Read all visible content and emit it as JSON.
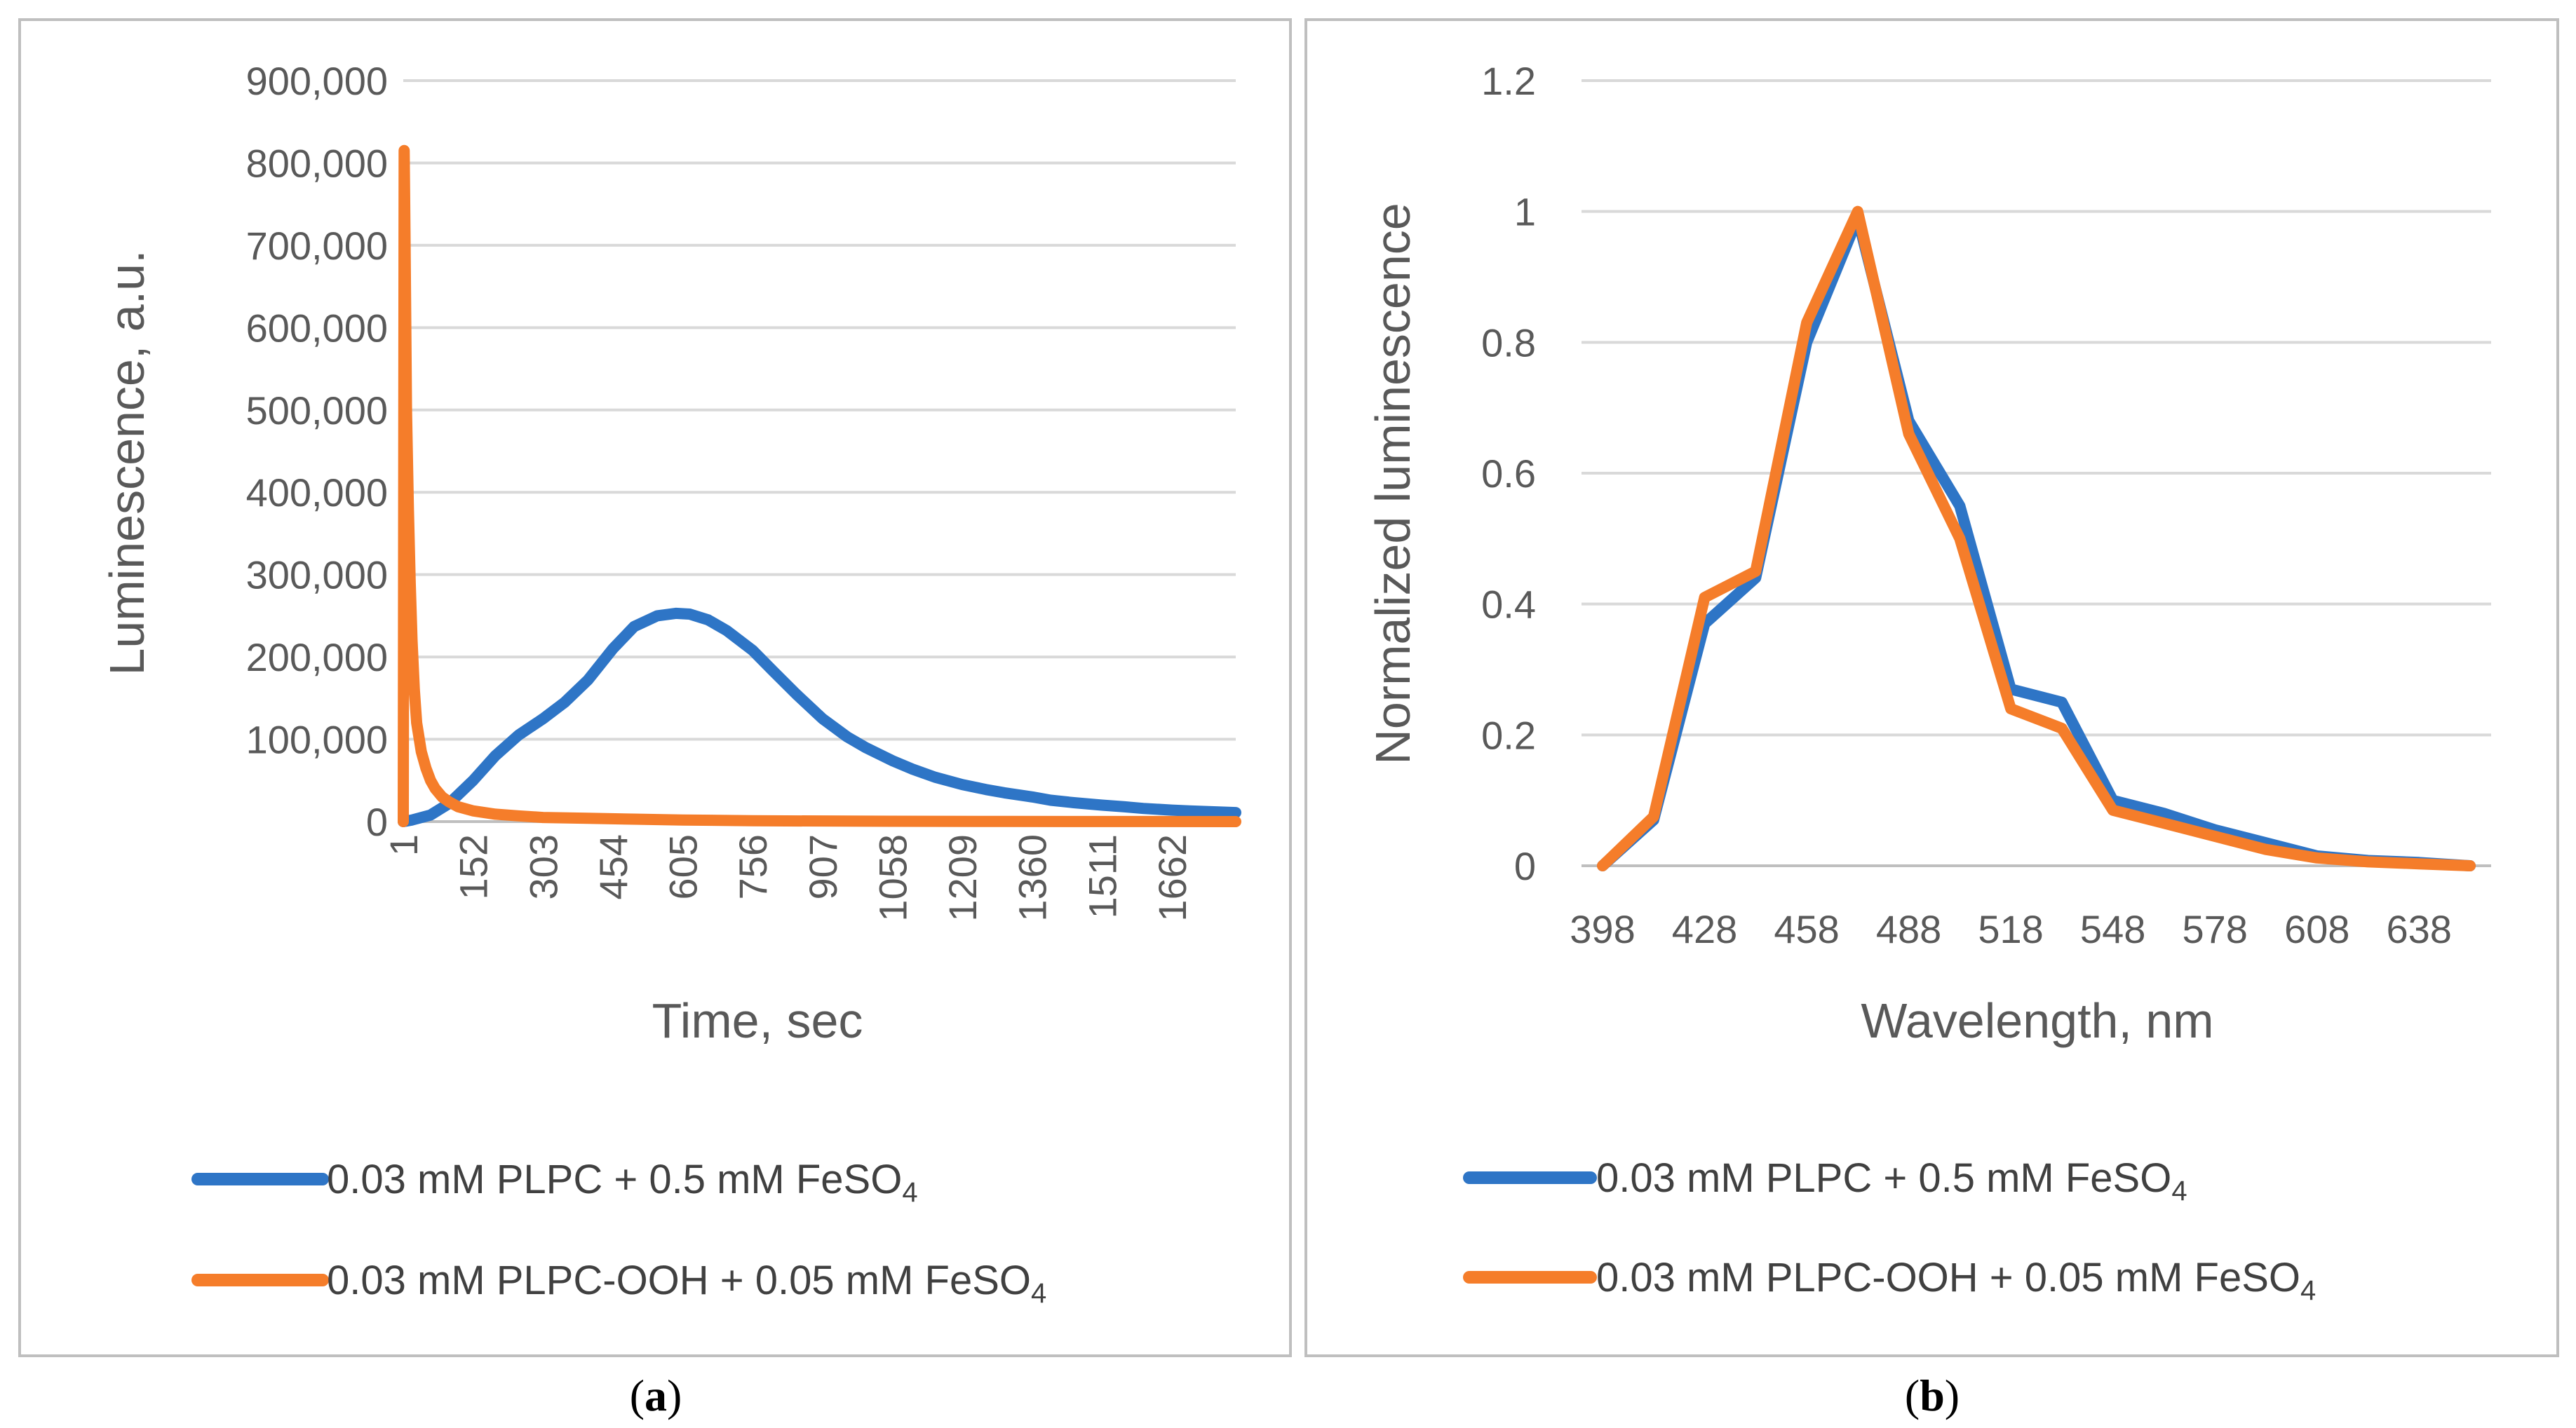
{
  "colors": {
    "series1": "#2E75C6",
    "series2": "#F57D2A",
    "grid": "#D9D9D9",
    "frame": "#BFBFBF",
    "text": "#595959"
  },
  "chart_data": [
    {
      "type": "line",
      "panel_label": "a",
      "xlabel": "Time, sec",
      "ylabel": "Luminescence, a.u.",
      "x_ticks": [
        "1",
        "152",
        "303",
        "454",
        "605",
        "756",
        "907",
        "1058",
        "1209",
        "1360",
        "1511",
        "1662"
      ],
      "xlim": [
        1,
        1800
      ],
      "y_ticks": [
        "0",
        "100,000",
        "200,000",
        "300,000",
        "400,000",
        "500,000",
        "600,000",
        "700,000",
        "800,000",
        "900,000"
      ],
      "ylim": [
        0,
        900000
      ],
      "grid": true,
      "legend_position": "bottom",
      "series": [
        {
          "name": "0.03 mM PLPC + 0.5 mM FeSO",
          "name_subscript": "4",
          "color": "#2E75C6",
          "x": [
            1,
            20,
            60,
            100,
            152,
            200,
            250,
            303,
            350,
            400,
            454,
            500,
            550,
            590,
            620,
            660,
            700,
            756,
            800,
            850,
            907,
            960,
            1000,
            1058,
            1100,
            1150,
            1209,
            1260,
            1300,
            1360,
            1400,
            1450,
            1511,
            1560,
            1600,
            1662,
            1700,
            1800
          ],
          "y": [
            0,
            2000,
            8000,
            22000,
            50000,
            80000,
            105000,
            125000,
            145000,
            172000,
            210000,
            237000,
            250000,
            253000,
            252000,
            245000,
            232000,
            208000,
            183000,
            155000,
            125000,
            103000,
            90000,
            74000,
            64000,
            54000,
            45000,
            39000,
            35000,
            30000,
            26000,
            23000,
            20000,
            18000,
            16000,
            14000,
            13000,
            11000
          ]
        },
        {
          "name": "0.03 mM PLPC-OOH + 0.05 mM FeSO",
          "name_subscript": "4",
          "color": "#F57D2A",
          "x": [
            1,
            3,
            5,
            8,
            12,
            16,
            20,
            25,
            30,
            40,
            50,
            60,
            70,
            85,
            100,
            120,
            152,
            200,
            250,
            303,
            400,
            500,
            605,
            756,
            1000,
            1300,
            1600,
            1800
          ],
          "y": [
            0,
            815000,
            700000,
            500000,
            380000,
            290000,
            220000,
            160000,
            120000,
            85000,
            65000,
            50000,
            40000,
            30000,
            24000,
            18000,
            13000,
            9000,
            7000,
            5000,
            4000,
            3000,
            2000,
            1000,
            500,
            200,
            100,
            0
          ]
        }
      ]
    },
    {
      "type": "line",
      "panel_label": "b",
      "xlabel": "Wavelength, nm",
      "ylabel": "Normalized luminescence",
      "x_ticks": [
        "398",
        "428",
        "458",
        "488",
        "518",
        "548",
        "578",
        "608",
        "638"
      ],
      "xlim": [
        398,
        653
      ],
      "y_ticks": [
        "0",
        "0.2",
        "0.4",
        "0.6",
        "0.8",
        "1",
        "1.2"
      ],
      "ylim": [
        0,
        1.2
      ],
      "grid": true,
      "legend_position": "bottom",
      "series": [
        {
          "name": "0.03 mM PLPC + 0.5 mM FeSO",
          "name_subscript": "4",
          "color": "#2E75C6",
          "x": [
            398,
            413,
            428,
            443,
            458,
            473,
            488,
            503,
            518,
            533,
            548,
            563,
            578,
            593,
            608,
            623,
            638,
            653
          ],
          "y": [
            0.0,
            0.07,
            0.37,
            0.44,
            0.8,
            0.99,
            0.68,
            0.55,
            0.27,
            0.25,
            0.1,
            0.08,
            0.055,
            0.035,
            0.015,
            0.008,
            0.005,
            0.0
          ]
        },
        {
          "name": "0.03 mM PLPC-OOH + 0.05 mM FeSO",
          "name_subscript": "4",
          "color": "#F57D2A",
          "x": [
            398,
            413,
            428,
            443,
            458,
            473,
            488,
            503,
            518,
            533,
            548,
            563,
            578,
            593,
            608,
            623,
            638,
            653
          ],
          "y": [
            0.0,
            0.075,
            0.41,
            0.45,
            0.83,
            1.0,
            0.66,
            0.5,
            0.24,
            0.21,
            0.085,
            0.065,
            0.045,
            0.025,
            0.012,
            0.006,
            0.003,
            0.0
          ]
        }
      ]
    }
  ]
}
